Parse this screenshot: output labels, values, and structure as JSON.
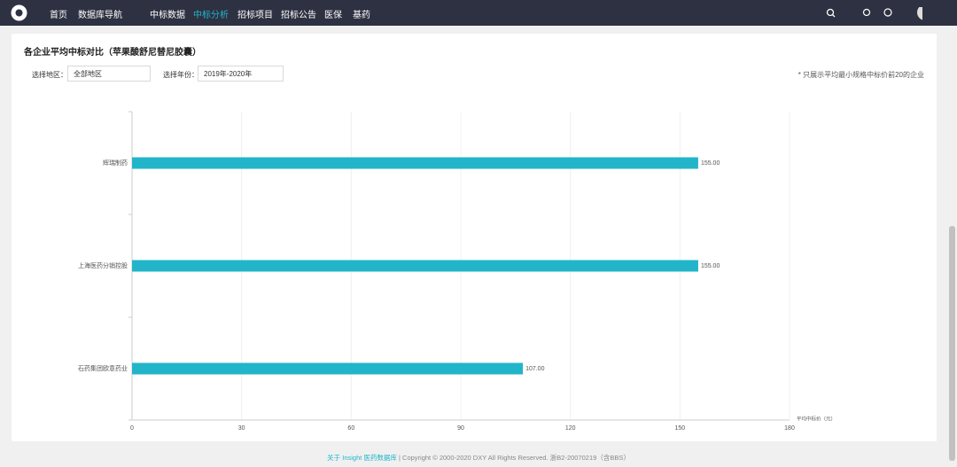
{
  "nav": {
    "items": [
      "首页",
      "数据库导航",
      "中标数据",
      "中标分析",
      "招标项目",
      "招标公告",
      "医保",
      "基药"
    ],
    "active": 3
  },
  "filters": {
    "region_label": "选择地区：",
    "region_value": "全部地区",
    "year_label": "选择年份：",
    "year_value": "2019年-2020年",
    "note": "* 只展示平均最小规格中标价前20的企业"
  },
  "chart_data": {
    "type": "bar",
    "orientation": "horizontal",
    "title": "各企业平均中标对比（苹果酸舒尼替尼胶囊）",
    "categories": [
      "辉瑞制药",
      "上海医药分销控股",
      "石药集团欧意药业"
    ],
    "values": [
      155,
      155,
      107
    ],
    "value_labels": [
      "155.00",
      "155.00",
      "107.00"
    ],
    "color": "#22b5c9",
    "x_label": "平均中标价（元）",
    "xlim": [
      0,
      180
    ],
    "xticks": [
      0,
      30,
      60,
      90,
      120,
      150,
      180
    ],
    "grid": true
  },
  "footer": {
    "link": "关于 Insight 医药数据库",
    "text": "| Copyright © 2000-2020 DXY All Rights Reserved. 浙B2-20070219（含BBS）"
  }
}
